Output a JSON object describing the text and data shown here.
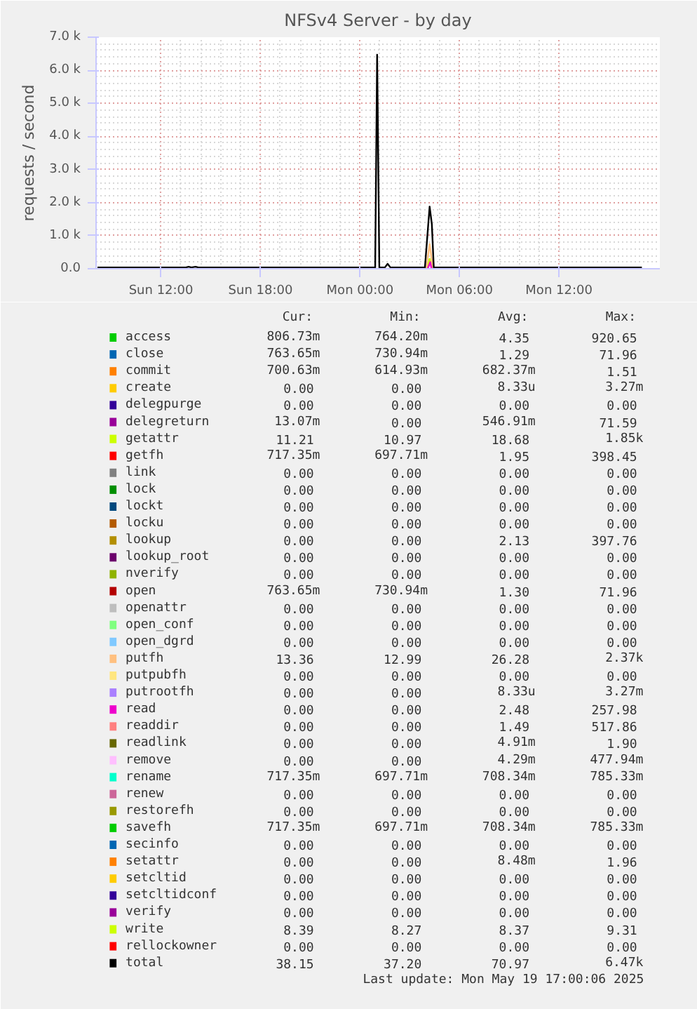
{
  "chart_data": {
    "type": "line",
    "title": "NFSv4 Server - by day",
    "ylabel": "requests / second",
    "x": [
      "2025-05-18T08:10",
      "2025-05-18T13:30",
      "2025-05-18T13:40",
      "2025-05-18T13:50",
      "2025-05-18T14:05",
      "2025-05-18T14:15",
      "2025-05-19T00:55",
      "2025-05-19T01:02",
      "2025-05-19T01:10",
      "2025-05-19T01:30",
      "2025-05-19T01:40",
      "2025-05-19T01:50",
      "2025-05-19T03:55",
      "2025-05-19T04:12",
      "2025-05-19T04:20",
      "2025-05-19T04:27",
      "2025-05-19T17:00"
    ],
    "xlim": [
      "2025-05-18T08:05",
      "2025-05-19T18:05"
    ],
    "xticks": [
      {
        "value": "2025-05-18T12:00",
        "label": "Sun 12:00"
      },
      {
        "value": "2025-05-18T18:00",
        "label": "Sun 18:00"
      },
      {
        "value": "2025-05-19T00:00",
        "label": "Mon 00:00"
      },
      {
        "value": "2025-05-19T06:00",
        "label": "Mon 06:00"
      },
      {
        "value": "2025-05-19T12:00",
        "label": "Mon 12:00"
      }
    ],
    "ylim": [
      0,
      7000
    ],
    "yticks": [
      {
        "value": 0,
        "label": "0.0"
      },
      {
        "value": 1000,
        "label": "1.0 k"
      },
      {
        "value": 2000,
        "label": "2.0 k"
      },
      {
        "value": 3000,
        "label": "3.0 k"
      },
      {
        "value": 4000,
        "label": "4.0 k"
      },
      {
        "value": 5000,
        "label": "5.0 k"
      },
      {
        "value": 6000,
        "label": "6.0 k"
      },
      {
        "value": 7000,
        "label": "7.0 k"
      }
    ],
    "grid": true,
    "legend": "bottom",
    "marker": "none",
    "line_style": "solid",
    "series": [
      {
        "name": "access",
        "color": "#00cc00",
        "values": [
          null,
          null,
          null,
          null,
          null,
          null,
          null,
          null,
          null,
          null,
          null,
          null,
          null,
          null,
          null,
          null,
          null
        ]
      },
      {
        "name": "close",
        "color": "#0066b3",
        "values": [
          null,
          null,
          null,
          null,
          null,
          null,
          null,
          null,
          null,
          null,
          null,
          null,
          null,
          null,
          null,
          null,
          null
        ]
      },
      {
        "name": "commit",
        "color": "#ff8000",
        "values": [
          null,
          null,
          null,
          null,
          null,
          null,
          null,
          null,
          null,
          null,
          null,
          null,
          null,
          null,
          null,
          null,
          null
        ]
      },
      {
        "name": "create",
        "color": "#ffcc00",
        "values": [
          null,
          null,
          null,
          null,
          null,
          null,
          null,
          null,
          null,
          null,
          null,
          null,
          null,
          null,
          null,
          null,
          null
        ]
      },
      {
        "name": "delegpurge",
        "color": "#330099",
        "values": [
          null,
          null,
          null,
          null,
          null,
          null,
          null,
          null,
          null,
          null,
          null,
          null,
          null,
          null,
          null,
          null,
          null
        ]
      },
      {
        "name": "delegreturn",
        "color": "#990099",
        "values": [
          null,
          null,
          null,
          null,
          null,
          null,
          null,
          null,
          null,
          null,
          null,
          null,
          null,
          null,
          null,
          null,
          null
        ]
      },
      {
        "name": "getattr",
        "color": "#ccff00",
        "x": [
          "2025-05-19T04:02",
          "2025-05-19T04:12",
          "2025-05-19T04:22"
        ],
        "values": [
          0,
          300,
          0
        ]
      },
      {
        "name": "getfh",
        "color": "#ff0000",
        "values": [
          null,
          null,
          null,
          null,
          null,
          null,
          null,
          null,
          null,
          null,
          null,
          null,
          null,
          null,
          null,
          null,
          null
        ]
      },
      {
        "name": "link",
        "color": "#808080",
        "values": [
          null,
          null,
          null,
          null,
          null,
          null,
          null,
          null,
          null,
          null,
          null,
          null,
          null,
          null,
          null,
          null,
          null
        ]
      },
      {
        "name": "lock",
        "color": "#008f00",
        "values": [
          null,
          null,
          null,
          null,
          null,
          null,
          null,
          null,
          null,
          null,
          null,
          null,
          null,
          null,
          null,
          null,
          null
        ]
      },
      {
        "name": "lockt",
        "color": "#00487d",
        "values": [
          null,
          null,
          null,
          null,
          null,
          null,
          null,
          null,
          null,
          null,
          null,
          null,
          null,
          null,
          null,
          null,
          null
        ]
      },
      {
        "name": "locku",
        "color": "#b35a00",
        "values": [
          null,
          null,
          null,
          null,
          null,
          null,
          null,
          null,
          null,
          null,
          null,
          null,
          null,
          null,
          null,
          null,
          null
        ]
      },
      {
        "name": "lookup",
        "color": "#b38f00",
        "values": [
          null,
          null,
          null,
          null,
          null,
          null,
          null,
          null,
          null,
          null,
          null,
          null,
          null,
          null,
          null,
          null,
          null
        ]
      },
      {
        "name": "lookup_root",
        "color": "#6b006b",
        "values": [
          null,
          null,
          null,
          null,
          null,
          null,
          null,
          null,
          null,
          null,
          null,
          null,
          null,
          null,
          null,
          null,
          null
        ]
      },
      {
        "name": "nverify",
        "color": "#8fb300",
        "values": [
          null,
          null,
          null,
          null,
          null,
          null,
          null,
          null,
          null,
          null,
          null,
          null,
          null,
          null,
          null,
          null,
          null
        ]
      },
      {
        "name": "open",
        "color": "#b30000",
        "values": [
          null,
          null,
          null,
          null,
          null,
          null,
          null,
          null,
          null,
          null,
          null,
          null,
          null,
          null,
          null,
          null,
          null
        ]
      },
      {
        "name": "openattr",
        "color": "#bebebe",
        "values": [
          null,
          null,
          null,
          null,
          null,
          null,
          null,
          null,
          null,
          null,
          null,
          null,
          null,
          null,
          null,
          null,
          null
        ]
      },
      {
        "name": "open_conf",
        "color": "#80ff80",
        "values": [
          null,
          null,
          null,
          null,
          null,
          null,
          null,
          null,
          null,
          null,
          null,
          null,
          null,
          null,
          null,
          null,
          null
        ]
      },
      {
        "name": "open_dgrd",
        "color": "#80c9ff",
        "values": [
          null,
          null,
          null,
          null,
          null,
          null,
          null,
          null,
          null,
          null,
          null,
          null,
          null,
          null,
          null,
          null,
          null
        ]
      },
      {
        "name": "putfh",
        "color": "#ffc080",
        "x": [
          "2025-05-19T04:00",
          "2025-05-19T04:12",
          "2025-05-19T04:24"
        ],
        "values": [
          0,
          750,
          0
        ]
      },
      {
        "name": "putpubfh",
        "color": "#ffe680",
        "values": [
          null,
          null,
          null,
          null,
          null,
          null,
          null,
          null,
          null,
          null,
          null,
          null,
          null,
          null,
          null,
          null,
          null
        ]
      },
      {
        "name": "putrootfh",
        "color": "#aa80ff",
        "values": [
          null,
          null,
          null,
          null,
          null,
          null,
          null,
          null,
          null,
          null,
          null,
          null,
          null,
          null,
          null,
          null,
          null
        ]
      },
      {
        "name": "read",
        "color": "#ee00cc",
        "x": [
          "2025-05-19T04:05",
          "2025-05-19T04:14",
          "2025-05-19T04:19"
        ],
        "values": [
          0,
          200,
          0
        ]
      },
      {
        "name": "readdir",
        "color": "#ff8080",
        "values": [
          null,
          null,
          null,
          null,
          null,
          null,
          null,
          null,
          null,
          null,
          null,
          null,
          null,
          null,
          null,
          null,
          null
        ]
      },
      {
        "name": "readlink",
        "color": "#666600",
        "values": [
          null,
          null,
          null,
          null,
          null,
          null,
          null,
          null,
          null,
          null,
          null,
          null,
          null,
          null,
          null,
          null,
          null
        ]
      },
      {
        "name": "remove",
        "color": "#ffbfff",
        "values": [
          null,
          null,
          null,
          null,
          null,
          null,
          null,
          null,
          null,
          null,
          null,
          null,
          null,
          null,
          null,
          null,
          null
        ]
      },
      {
        "name": "rename",
        "color": "#00ffcc",
        "values": [
          null,
          null,
          null,
          null,
          null,
          null,
          null,
          null,
          null,
          null,
          null,
          null,
          null,
          null,
          null,
          null,
          null
        ]
      },
      {
        "name": "renew",
        "color": "#cc6699",
        "values": [
          null,
          null,
          null,
          null,
          null,
          null,
          null,
          null,
          null,
          null,
          null,
          null,
          null,
          null,
          null,
          null,
          null
        ]
      },
      {
        "name": "restorefh",
        "color": "#999900",
        "values": [
          null,
          null,
          null,
          null,
          null,
          null,
          null,
          null,
          null,
          null,
          null,
          null,
          null,
          null,
          null,
          null,
          null
        ]
      },
      {
        "name": "savefh",
        "color": "#00cc00",
        "values": [
          null,
          null,
          null,
          null,
          null,
          null,
          null,
          null,
          null,
          null,
          null,
          null,
          null,
          null,
          null,
          null,
          null
        ]
      },
      {
        "name": "secinfo",
        "color": "#0066b3",
        "values": [
          null,
          null,
          null,
          null,
          null,
          null,
          null,
          null,
          null,
          null,
          null,
          null,
          null,
          null,
          null,
          null,
          null
        ]
      },
      {
        "name": "setattr",
        "color": "#ff8000",
        "values": [
          null,
          null,
          null,
          null,
          null,
          null,
          null,
          null,
          null,
          null,
          null,
          null,
          null,
          null,
          null,
          null,
          null
        ]
      },
      {
        "name": "setcltid",
        "color": "#ffcc00",
        "values": [
          null,
          null,
          null,
          null,
          null,
          null,
          null,
          null,
          null,
          null,
          null,
          null,
          null,
          null,
          null,
          null,
          null
        ]
      },
      {
        "name": "setcltidconf",
        "color": "#330099",
        "values": [
          null,
          null,
          null,
          null,
          null,
          null,
          null,
          null,
          null,
          null,
          null,
          null,
          null,
          null,
          null,
          null,
          null
        ]
      },
      {
        "name": "verify",
        "color": "#990099",
        "values": [
          null,
          null,
          null,
          null,
          null,
          null,
          null,
          null,
          null,
          null,
          null,
          null,
          null,
          null,
          null,
          null,
          null
        ]
      },
      {
        "name": "write",
        "color": "#ccff00",
        "values": [
          null,
          null,
          null,
          null,
          null,
          null,
          null,
          null,
          null,
          null,
          null,
          null,
          null,
          null,
          null,
          null,
          null
        ]
      },
      {
        "name": "rellockowner",
        "color": "#ff0000",
        "values": [
          null,
          null,
          null,
          null,
          null,
          null,
          null,
          null,
          null,
          null,
          null,
          null,
          null,
          null,
          null,
          null,
          null
        ]
      },
      {
        "name": "total",
        "color": "#000000",
        "values": [
          40,
          40,
          60,
          40,
          60,
          40,
          40,
          6470,
          40,
          40,
          150,
          40,
          40,
          1880,
          1350,
          40,
          40
        ]
      }
    ],
    "annotations": [
      "Cur:",
      "Min:",
      "Avg:",
      "Max:",
      "806.73m",
      "764.20m",
      "4.35",
      "920.65",
      "763.65m",
      "730.94m",
      "1.29",
      "71.96",
      "700.63m",
      "614.93m",
      "682.37m",
      "1.51",
      "0.00",
      "0.00",
      "8.33u",
      "3.27m",
      "0.00",
      "0.00",
      "0.00",
      "0.00",
      "13.07m",
      "0.00",
      "546.91m",
      "71.59",
      "11.21",
      "10.97",
      "18.68",
      "1.85k",
      "717.35m",
      "697.71m",
      "1.95",
      "398.45",
      "0.00",
      "0.00",
      "0.00",
      "0.00",
      "0.00",
      "0.00",
      "0.00",
      "0.00",
      "0.00",
      "0.00",
      "0.00",
      "0.00",
      "0.00",
      "0.00",
      "0.00",
      "0.00",
      "0.00",
      "0.00",
      "2.13",
      "397.76",
      "0.00",
      "0.00",
      "0.00",
      "0.00",
      "0.00",
      "0.00",
      "0.00",
      "0.00",
      "763.65m",
      "730.94m",
      "1.30",
      "71.96",
      "0.00",
      "0.00",
      "0.00",
      "0.00",
      "0.00",
      "0.00",
      "0.00",
      "0.00",
      "0.00",
      "0.00",
      "0.00",
      "0.00",
      "13.36",
      "12.99",
      "26.28",
      "2.37k",
      "0.00",
      "0.00",
      "0.00",
      "0.00",
      "0.00",
      "0.00",
      "8.33u",
      "3.27m",
      "0.00",
      "0.00",
      "2.48",
      "257.98",
      "0.00",
      "0.00",
      "1.49",
      "517.86",
      "0.00",
      "0.00",
      "4.91m",
      "1.90",
      "0.00",
      "0.00",
      "4.29m",
      "477.94m",
      "717.35m",
      "697.71m",
      "708.34m",
      "785.33m",
      "0.00",
      "0.00",
      "0.00",
      "0.00",
      "0.00",
      "0.00",
      "0.00",
      "0.00",
      "717.35m",
      "697.71m",
      "708.34m",
      "785.33m",
      "0.00",
      "0.00",
      "0.00",
      "0.00",
      "0.00",
      "0.00",
      "8.48m",
      "1.96",
      "0.00",
      "0.00",
      "0.00",
      "0.00",
      "0.00",
      "0.00",
      "0.00",
      "0.00",
      "0.00",
      "0.00",
      "0.00",
      "0.00",
      "8.39",
      "8.27",
      "8.37",
      "9.31",
      "0.00",
      "0.00",
      "0.00",
      "0.00",
      "38.15",
      "37.20",
      "70.97",
      "6.47k",
      "Last update: Mon May 19 17:00:06 2025"
    ]
  }
}
